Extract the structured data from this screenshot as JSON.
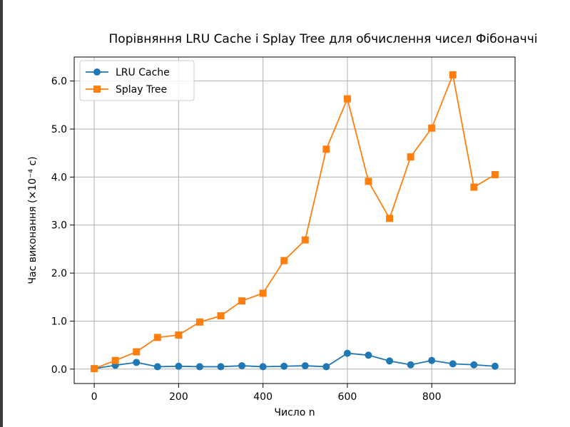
{
  "chart_data": {
    "type": "line",
    "title": "Порівняння LRU Cache і Splay Tree для обчислення чисел Фібоначчі",
    "xlabel": "Число n",
    "ylabel": "Час виконання (×10⁻⁴ с)",
    "xlim": [
      -47.5,
      997.5
    ],
    "ylim": [
      -0.3,
      6.5
    ],
    "xticks": [
      0,
      200,
      400,
      600,
      800
    ],
    "xtick_labels": [
      "0",
      "200",
      "400",
      "600",
      "800"
    ],
    "yticks": [
      0,
      1,
      2,
      3,
      4,
      5,
      6
    ],
    "ytick_labels": [
      "0.0",
      "1.0",
      "2.0",
      "3.0",
      "4.0",
      "5.0",
      "6.0"
    ],
    "grid": true,
    "legend_position": "top-left",
    "x": [
      0,
      50,
      100,
      150,
      200,
      250,
      300,
      350,
      400,
      450,
      500,
      550,
      600,
      650,
      700,
      750,
      800,
      850,
      900,
      950
    ],
    "series": [
      {
        "name": "LRU Cache",
        "color": "#1f77b4",
        "marker": "circle",
        "values": [
          0.01,
          0.08,
          0.14,
          0.05,
          0.06,
          0.05,
          0.05,
          0.07,
          0.05,
          0.06,
          0.07,
          0.05,
          0.33,
          0.29,
          0.17,
          0.09,
          0.18,
          0.11,
          0.09,
          0.06
        ]
      },
      {
        "name": "Splay Tree",
        "color": "#ff7f0e",
        "marker": "square",
        "values": [
          0.01,
          0.18,
          0.36,
          0.66,
          0.71,
          0.98,
          1.11,
          1.42,
          1.58,
          2.26,
          2.69,
          4.58,
          5.63,
          3.91,
          3.14,
          4.42,
          5.02,
          6.13,
          3.79,
          4.05
        ]
      }
    ]
  }
}
